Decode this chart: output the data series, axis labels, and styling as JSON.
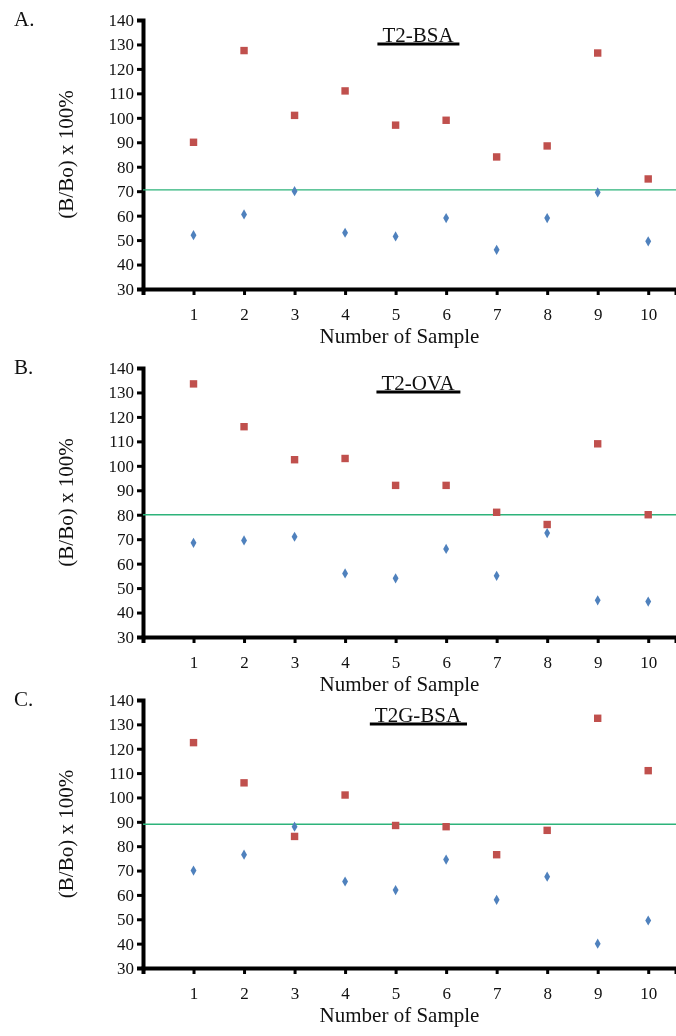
{
  "chart_data": [
    {
      "type": "scatter",
      "title": "T2-BSA",
      "annotations": [
        "A."
      ],
      "xlabel": "Number of Sample",
      "ylabel": "(B/Bo) x 100%",
      "x": [
        1,
        2,
        3,
        4,
        5,
        6,
        7,
        8,
        9,
        10
      ],
      "xlim": [
        0,
        10.55
      ],
      "xticks": [
        1,
        2,
        3,
        4,
        5,
        6,
        7,
        8,
        9,
        10
      ],
      "ylim": [
        30,
        140
      ],
      "yticks": [
        30,
        40,
        50,
        60,
        70,
        80,
        90,
        100,
        110,
        120,
        130,
        140
      ],
      "grid": false,
      "series": [
        {
          "color": "#c0504d",
          "marker": "square",
          "values": [
            90,
            127.5,
            101,
            111,
            97,
            99,
            84,
            88.5,
            126.5,
            75
          ]
        },
        {
          "color": "#4f81bd",
          "marker": "diamond",
          "values": [
            52,
            60.5,
            70,
            53,
            51.5,
            59,
            46,
            59,
            69.5,
            49.5
          ]
        }
      ],
      "ref_lines": [
        {
          "axis": "y",
          "value": 70.5,
          "color": "#2db37a"
        }
      ]
    },
    {
      "type": "scatter",
      "title": "T2-OVA",
      "annotations": [
        "B."
      ],
      "xlabel": "Number of Sample",
      "ylabel": "(B/Bo) x 100%",
      "x": [
        1,
        2,
        3,
        4,
        5,
        6,
        7,
        8,
        9,
        10
      ],
      "xlim": [
        0,
        10.55
      ],
      "xticks": [
        1,
        2,
        3,
        4,
        5,
        6,
        7,
        8,
        9,
        10
      ],
      "ylim": [
        30,
        140
      ],
      "yticks": [
        30,
        40,
        50,
        60,
        70,
        80,
        90,
        100,
        110,
        120,
        130,
        140
      ],
      "grid": false,
      "series": [
        {
          "color": "#c0504d",
          "marker": "square",
          "values": [
            133.5,
            116,
            102.5,
            103,
            92,
            92,
            81,
            76,
            109,
            80
          ]
        },
        {
          "color": "#4f81bd",
          "marker": "diamond",
          "values": [
            68.5,
            69.5,
            71,
            56,
            54,
            66,
            55,
            72.5,
            45,
            44.5
          ]
        }
      ],
      "ref_lines": [
        {
          "axis": "y",
          "value": 80,
          "color": "#2db37a"
        }
      ]
    },
    {
      "type": "scatter",
      "title": "T2G-BSA",
      "annotations": [
        "C."
      ],
      "xlabel": "Number of Sample",
      "ylabel": "(B/Bo) x 100%",
      "x": [
        1,
        2,
        3,
        4,
        5,
        6,
        7,
        8,
        9,
        10
      ],
      "xlim": [
        0,
        10.55
      ],
      "xticks": [
        1,
        2,
        3,
        4,
        5,
        6,
        7,
        8,
        9,
        10
      ],
      "ylim": [
        30,
        140
      ],
      "yticks": [
        30,
        40,
        50,
        60,
        70,
        80,
        90,
        100,
        110,
        120,
        130,
        140
      ],
      "grid": false,
      "series": [
        {
          "color": "#c0504d",
          "marker": "square",
          "values": [
            122.5,
            106,
            84,
            101,
            88.5,
            88,
            76.5,
            86.5,
            132.5,
            111
          ]
        },
        {
          "color": "#4f81bd",
          "marker": "diamond",
          "values": [
            70,
            76.5,
            88,
            65.5,
            62,
            74.5,
            58,
            67.5,
            40,
            49.5
          ]
        }
      ],
      "ref_lines": [
        {
          "axis": "y",
          "value": 89,
          "color": "#2db37a"
        }
      ]
    }
  ]
}
